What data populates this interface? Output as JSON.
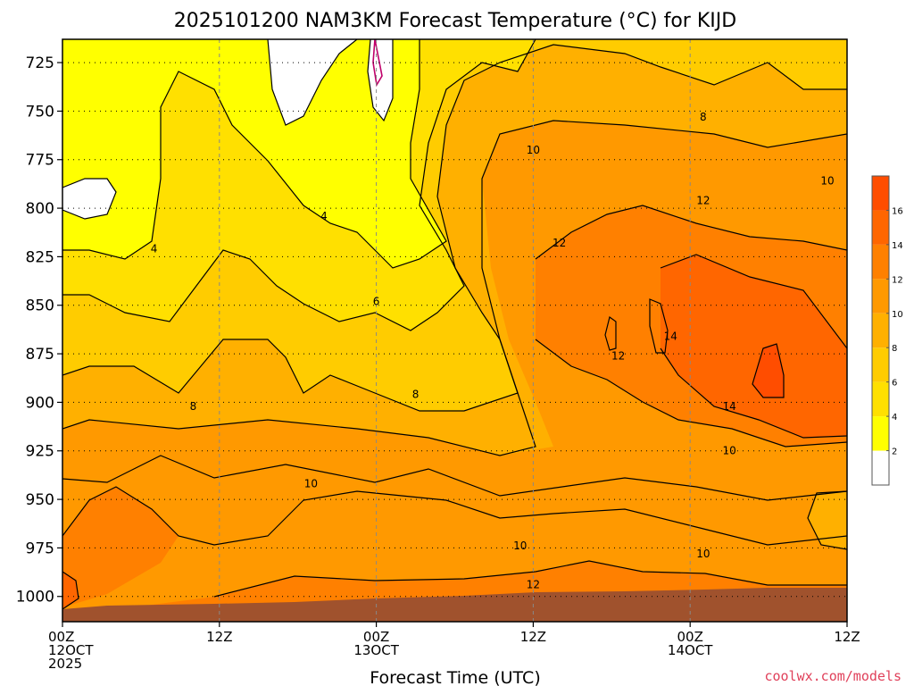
{
  "chart_data": {
    "type": "heatmap",
    "title": "2025101200 NAM3KM Forecast Temperature (°C) for KIJD",
    "xlabel": "Forecast Time (UTC)",
    "ylabel": "",
    "y_axis_values": [
      725,
      750,
      775,
      800,
      825,
      850,
      875,
      900,
      925,
      950,
      975,
      1000
    ],
    "y_range": [
      713,
      1013
    ],
    "x_range": [
      "2025-10-12T00Z",
      "2025-10-14T12Z"
    ],
    "x_ticks": [
      {
        "hour": 0,
        "line1": "00Z",
        "line2": "12OCT",
        "line3": "2025"
      },
      {
        "hour": 12,
        "line1": "12Z",
        "line2": "",
        "line3": ""
      },
      {
        "hour": 24,
        "line1": "00Z",
        "line2": "13OCT",
        "line3": ""
      },
      {
        "hour": 36,
        "line1": "12Z",
        "line2": "",
        "line3": ""
      },
      {
        "hour": 48,
        "line1": "00Z",
        "line2": "14OCT",
        "line3": ""
      },
      {
        "hour": 60,
        "line1": "12Z",
        "line2": "",
        "line3": ""
      }
    ],
    "grid": true,
    "colorbar": {
      "levels": [
        0,
        2,
        4,
        6,
        8,
        10,
        12,
        14,
        16,
        18
      ],
      "labels": [
        "2",
        "4",
        "6",
        "8",
        "10",
        "12",
        "14",
        "16"
      ],
      "colors": [
        "#ffffff",
        "#ffff00",
        "#ffe000",
        "#ffcc00",
        "#ffb000",
        "#ff9900",
        "#ff8000",
        "#ff6600",
        "#ff4d00"
      ],
      "position": "right"
    },
    "ground_color": "#a0522d",
    "contour_labels": [
      {
        "text": "4",
        "hour": 7.0,
        "pressure": 821
      },
      {
        "text": "4",
        "hour": 20.0,
        "pressure": 804
      },
      {
        "text": "6",
        "hour": 24.0,
        "pressure": 848
      },
      {
        "text": "8",
        "hour": 10.0,
        "pressure": 902
      },
      {
        "text": "8",
        "hour": 27.0,
        "pressure": 896
      },
      {
        "text": "8",
        "hour": 49.0,
        "pressure": 753
      },
      {
        "text": "10",
        "hour": 19.0,
        "pressure": 942
      },
      {
        "text": "10",
        "hour": 35.0,
        "pressure": 974
      },
      {
        "text": "10",
        "hour": 36.0,
        "pressure": 770
      },
      {
        "text": "10",
        "hour": 49.0,
        "pressure": 978
      },
      {
        "text": "10",
        "hour": 51.0,
        "pressure": 925
      },
      {
        "text": "10",
        "hour": 58.5,
        "pressure": 786
      },
      {
        "text": "12",
        "hour": 38.0,
        "pressure": 818
      },
      {
        "text": "12",
        "hour": 49.0,
        "pressure": 796
      },
      {
        "text": "12",
        "hour": 42.5,
        "pressure": 876
      },
      {
        "text": "12",
        "hour": 36.0,
        "pressure": 994
      },
      {
        "text": "14",
        "hour": 46.5,
        "pressure": 866
      },
      {
        "text": "14",
        "hour": 51.0,
        "pressure": 902
      }
    ]
  },
  "credit": "coolwx.com/models"
}
